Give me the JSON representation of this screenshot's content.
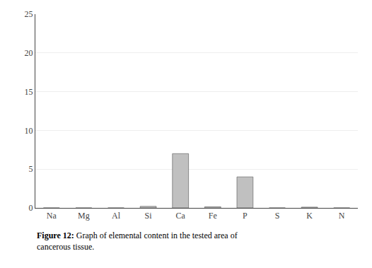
{
  "chart_data": {
    "type": "bar",
    "categories": [
      "Na",
      "Mg",
      "Al",
      "Si",
      "Ca",
      "Fe",
      "P",
      "S",
      "K",
      "N"
    ],
    "values": [
      0.0,
      0.0,
      0.0,
      0.2,
      7.0,
      0.15,
      4.0,
      0.0,
      0.1,
      0.0
    ],
    "color": "#c0c0c0",
    "ylim": [
      0,
      25
    ],
    "yticks": [
      0,
      5,
      10,
      15,
      20,
      25
    ],
    "grid": true,
    "annotations": [
      "Figure 12:",
      "Graph of elemental content in the tested area of",
      "cancerous tissue."
    ]
  }
}
